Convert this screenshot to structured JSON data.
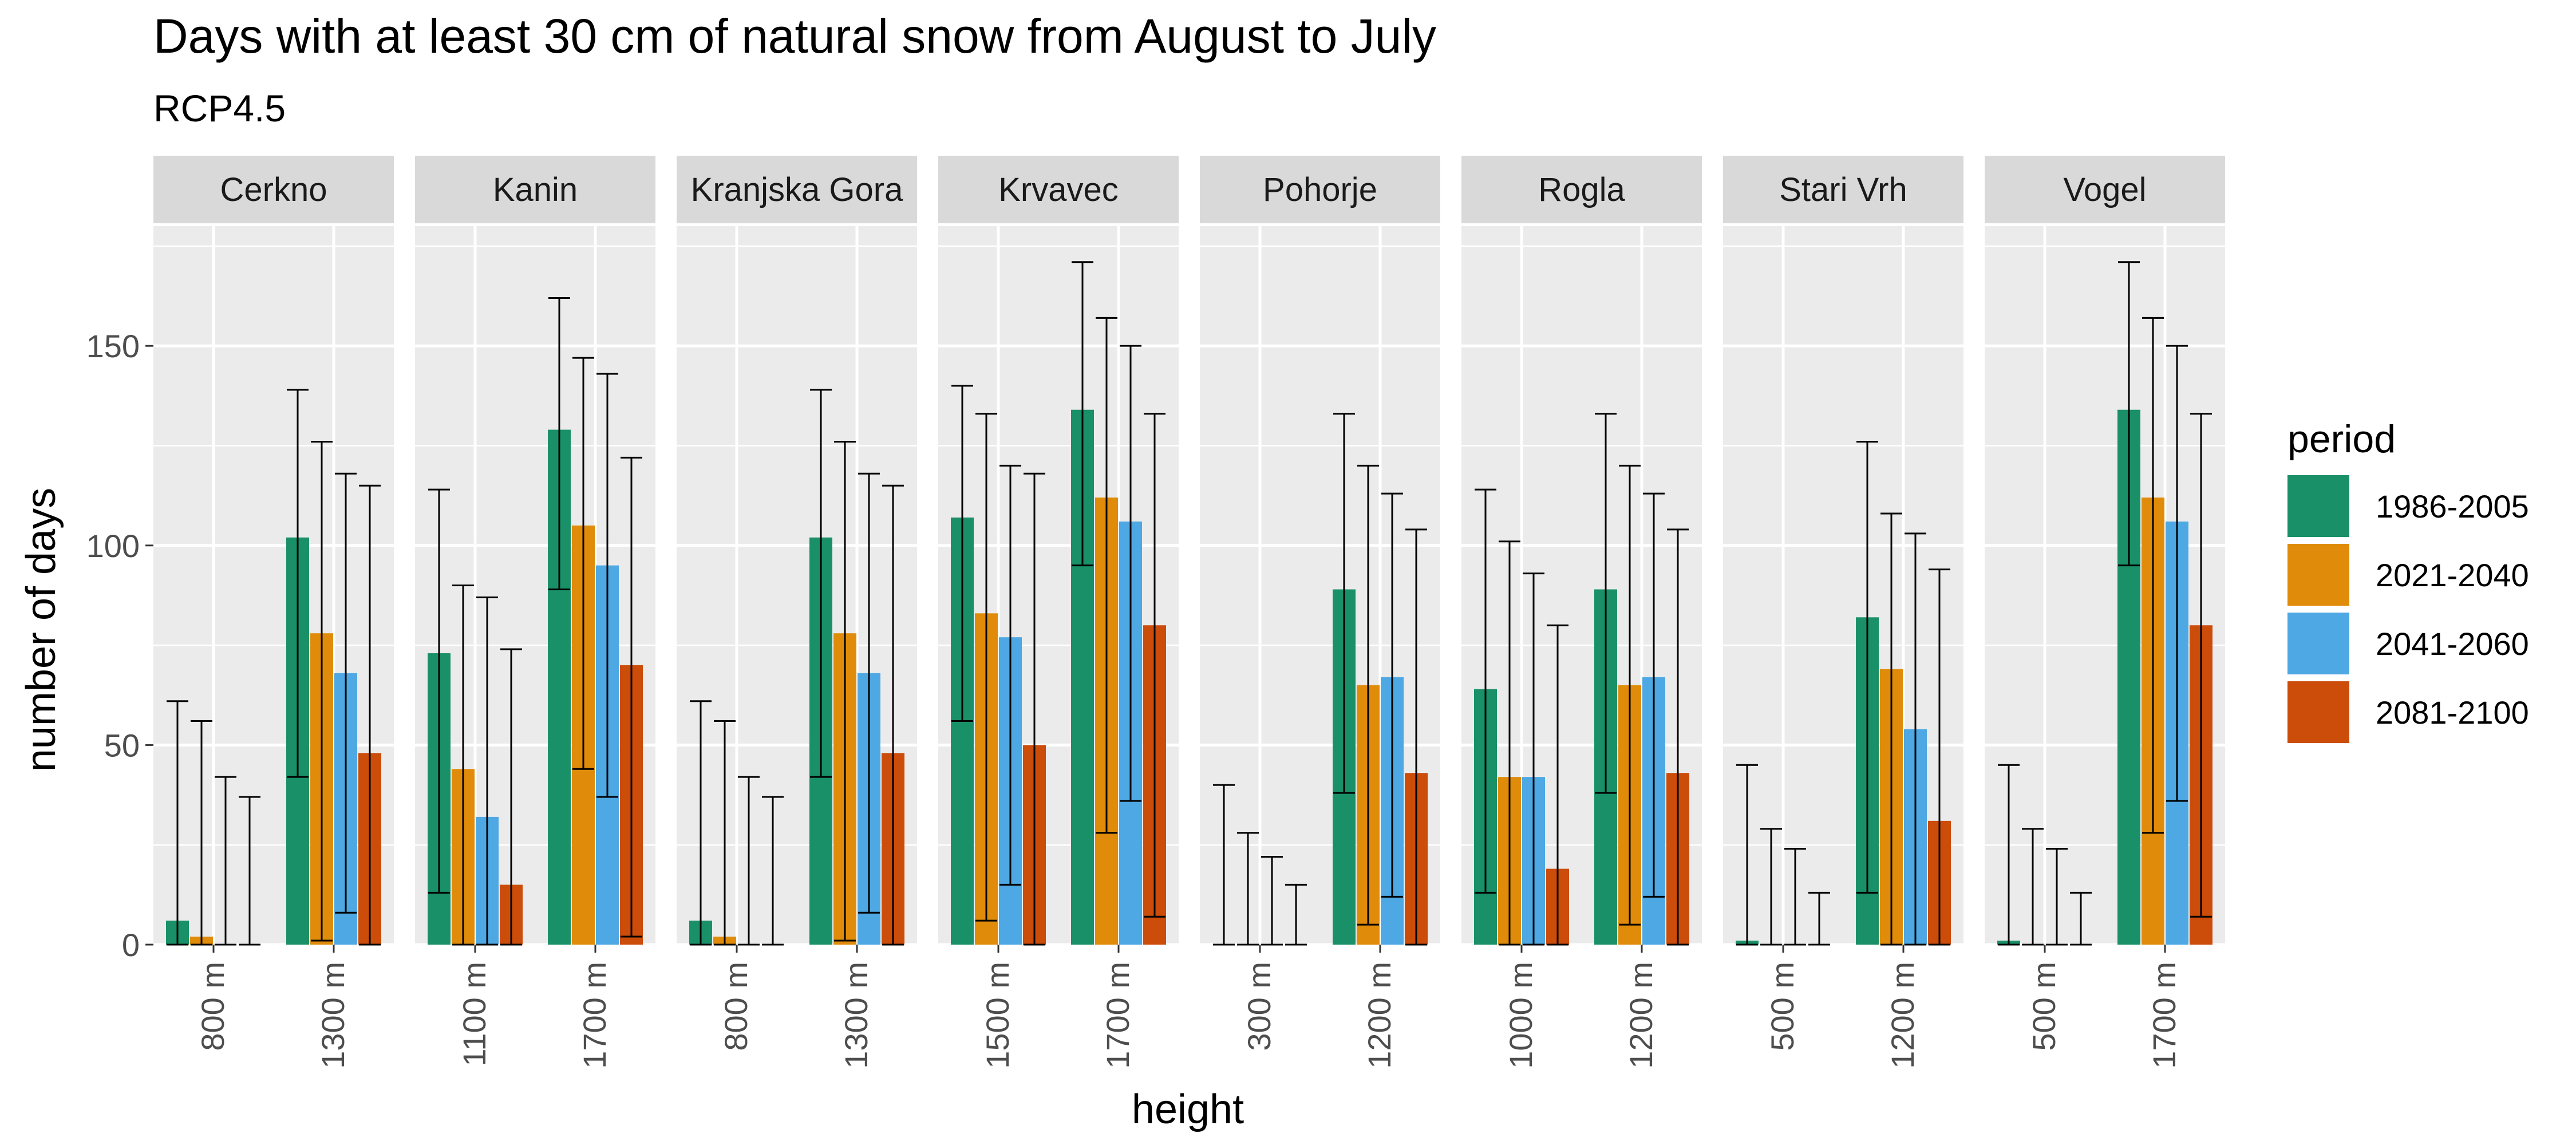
{
  "chart_data": {
    "type": "bar",
    "title": "Days with at least 30 cm of natural snow from August to July",
    "subtitle": "RCP4.5",
    "xlabel": "height",
    "ylabel": "number of days",
    "ylim": [
      0,
      180
    ],
    "y_ticks": [
      0,
      50,
      100,
      150
    ],
    "grid": true,
    "legend": {
      "title": "period",
      "position": "right"
    },
    "series": [
      {
        "name": "1986-2005",
        "color": "#1A9068"
      },
      {
        "name": "2021-2040",
        "color": "#E08C0A"
      },
      {
        "name": "2041-2060",
        "color": "#4EA8E3"
      },
      {
        "name": "2081-2100",
        "color": "#CC4C0A"
      }
    ],
    "facets": [
      {
        "name": "Cerkno",
        "groups": [
          {
            "label": "800 m",
            "values": [
              6,
              2,
              0,
              0
            ],
            "upper": [
              61,
              56,
              42,
              37
            ],
            "lower": [
              0,
              0,
              0,
              0
            ]
          },
          {
            "label": "1300 m",
            "values": [
              102,
              78,
              68,
              48
            ],
            "upper": [
              139,
              126,
              118,
              115
            ],
            "lower": [
              42,
              1,
              8,
              0
            ]
          }
        ]
      },
      {
        "name": "Kanin",
        "groups": [
          {
            "label": "1100 m",
            "values": [
              73,
              44,
              32,
              15
            ],
            "upper": [
              114,
              90,
              87,
              74
            ],
            "lower": [
              13,
              0,
              0,
              0
            ]
          },
          {
            "label": "1700 m",
            "values": [
              129,
              105,
              95,
              70
            ],
            "upper": [
              162,
              147,
              143,
              122
            ],
            "lower": [
              89,
              44,
              37,
              2
            ]
          }
        ]
      },
      {
        "name": "Kranjska Gora",
        "groups": [
          {
            "label": "800 m",
            "values": [
              6,
              2,
              0,
              0
            ],
            "upper": [
              61,
              56,
              42,
              37
            ],
            "lower": [
              0,
              0,
              0,
              0
            ]
          },
          {
            "label": "1300 m",
            "values": [
              102,
              78,
              68,
              48
            ],
            "upper": [
              139,
              126,
              118,
              115
            ],
            "lower": [
              42,
              1,
              8,
              0
            ]
          }
        ]
      },
      {
        "name": "Krvavec",
        "groups": [
          {
            "label": "1500 m",
            "values": [
              107,
              83,
              77,
              50
            ],
            "upper": [
              140,
              133,
              120,
              118
            ],
            "lower": [
              56,
              6,
              15,
              0
            ]
          },
          {
            "label": "1700 m",
            "values": [
              134,
              112,
              106,
              80
            ],
            "upper": [
              171,
              157,
              150,
              133
            ],
            "lower": [
              95,
              28,
              36,
              7
            ]
          }
        ]
      },
      {
        "name": "Pohorje",
        "groups": [
          {
            "label": "300 m",
            "values": [
              0,
              0,
              0,
              0
            ],
            "upper": [
              40,
              28,
              22,
              15
            ],
            "lower": [
              0,
              0,
              0,
              0
            ]
          },
          {
            "label": "1200 m",
            "values": [
              89,
              65,
              67,
              43
            ],
            "upper": [
              133,
              120,
              113,
              104
            ],
            "lower": [
              38,
              5,
              12,
              0
            ]
          }
        ]
      },
      {
        "name": "Rogla",
        "groups": [
          {
            "label": "1000 m",
            "values": [
              64,
              42,
              42,
              19
            ],
            "upper": [
              114,
              101,
              93,
              80
            ],
            "lower": [
              13,
              0,
              0,
              0
            ]
          },
          {
            "label": "1200 m",
            "values": [
              89,
              65,
              67,
              43
            ],
            "upper": [
              133,
              120,
              113,
              104
            ],
            "lower": [
              38,
              5,
              12,
              0
            ]
          }
        ]
      },
      {
        "name": "Stari Vrh",
        "groups": [
          {
            "label": "500 m",
            "values": [
              1,
              0,
              0,
              0
            ],
            "upper": [
              45,
              29,
              24,
              13
            ],
            "lower": [
              0,
              0,
              0,
              0
            ]
          },
          {
            "label": "1200 m",
            "values": [
              82,
              69,
              54,
              31
            ],
            "upper": [
              126,
              108,
              103,
              94
            ],
            "lower": [
              13,
              0,
              0,
              0
            ]
          }
        ]
      },
      {
        "name": "Vogel",
        "groups": [
          {
            "label": "500 m",
            "values": [
              1,
              0,
              0,
              0
            ],
            "upper": [
              45,
              29,
              24,
              13
            ],
            "lower": [
              0,
              0,
              0,
              0
            ]
          },
          {
            "label": "1700 m",
            "values": [
              134,
              112,
              106,
              80
            ],
            "upper": [
              171,
              157,
              150,
              133
            ],
            "lower": [
              95,
              28,
              36,
              7
            ]
          }
        ]
      }
    ]
  }
}
